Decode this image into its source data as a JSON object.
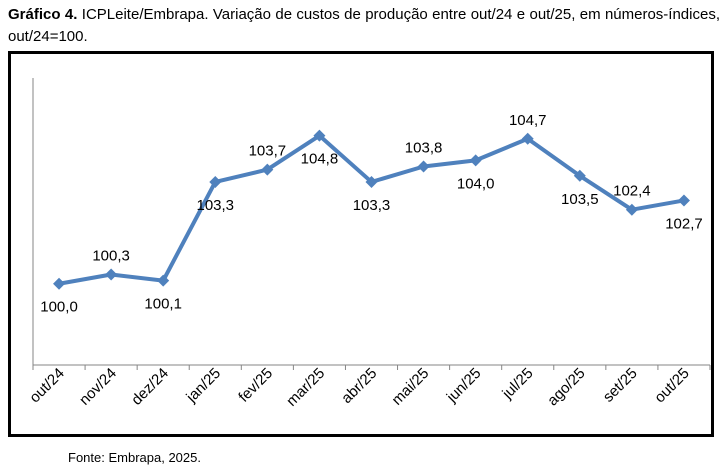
{
  "caption": {
    "label": "Gráfico 4.",
    "text": " ICPLeite/Embrapa. Variação de custos de produção entre out/24 e out/25, em números-índices, out/24=100."
  },
  "source": "Fonte: Embrapa, 2025.",
  "chart_data": {
    "type": "line",
    "title": "ICPLeite/Embrapa. Variação de custos de produção entre out/24 e out/25, em números-índices, out/24=100.",
    "xlabel": "",
    "ylabel": "",
    "categories": [
      "out/24",
      "nov/24",
      "dez/24",
      "jan/25",
      "fev/25",
      "mar/25",
      "abr/25",
      "mai/25",
      "jun/25",
      "jul/25",
      "ago/25",
      "set/25",
      "out/25"
    ],
    "series": [
      {
        "name": "ICPLeite",
        "color": "#4f81bd",
        "values": [
          100.0,
          100.3,
          100.1,
          103.3,
          103.7,
          104.8,
          103.3,
          103.8,
          104.0,
          104.7,
          103.5,
          102.4,
          102.7
        ],
        "labels": [
          "100,0",
          "100,3",
          "100,1",
          "103,3",
          "103,7",
          "104,8",
          "103,3",
          "103,8",
          "104,0",
          "104,7",
          "103,5",
          "102,4",
          "102,7"
        ]
      }
    ],
    "ylim": [
      97.3,
      105.6
    ],
    "grid": false,
    "legend": "none"
  }
}
